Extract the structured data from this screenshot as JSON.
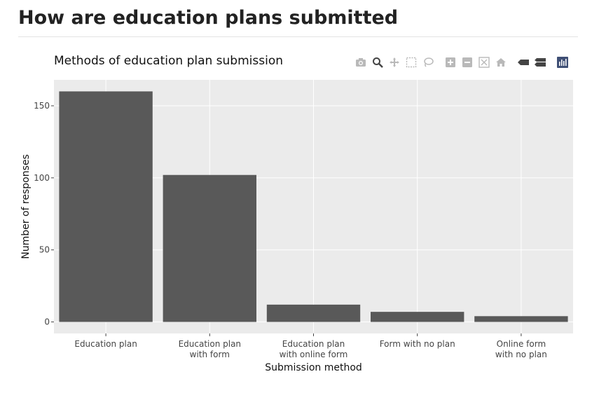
{
  "page": {
    "title": "How are education plans submitted"
  },
  "modebar": {
    "buttons": [
      {
        "name": "camera-icon",
        "label": "Download plot as a png"
      },
      {
        "name": "zoom-icon",
        "label": "Zoom"
      },
      {
        "name": "pan-icon",
        "label": "Pan"
      },
      {
        "name": "box-select-icon",
        "label": "Box Select"
      },
      {
        "name": "lasso-select-icon",
        "label": "Lasso Select"
      },
      {
        "name": "zoom-in-icon",
        "label": "Zoom in"
      },
      {
        "name": "zoom-out-icon",
        "label": "Zoom out"
      },
      {
        "name": "autoscale-icon",
        "label": "Autoscale"
      },
      {
        "name": "home-icon",
        "label": "Reset axes"
      },
      {
        "name": "spike-lines-icon",
        "label": "Toggle Spike Lines"
      },
      {
        "name": "hover-compare-icon",
        "label": "Compare data on hover"
      },
      {
        "name": "plotly-logo-icon",
        "label": "Produced with Plotly"
      }
    ],
    "colors": {
      "inactive": "#b9b9b9",
      "active": "#444444",
      "logo": "#3f4f75"
    }
  },
  "chart_data": {
    "type": "bar",
    "title": "Methods of education plan submission",
    "xlabel": "Submission method",
    "ylabel": "Number of responses",
    "categories": [
      [
        "Education plan"
      ],
      [
        "Education plan",
        "with form"
      ],
      [
        "Education plan",
        "with online form"
      ],
      [
        "Form with no plan"
      ],
      [
        "Online form",
        "with no plan"
      ]
    ],
    "values": [
      160,
      102,
      12,
      7,
      4
    ],
    "ylim": [
      -8,
      168
    ],
    "yticks": [
      0,
      50,
      100,
      150
    ],
    "grid": true,
    "colors": {
      "bar": "#595959",
      "plot_bg": "#ebebeb",
      "grid": "#ffffff"
    }
  }
}
